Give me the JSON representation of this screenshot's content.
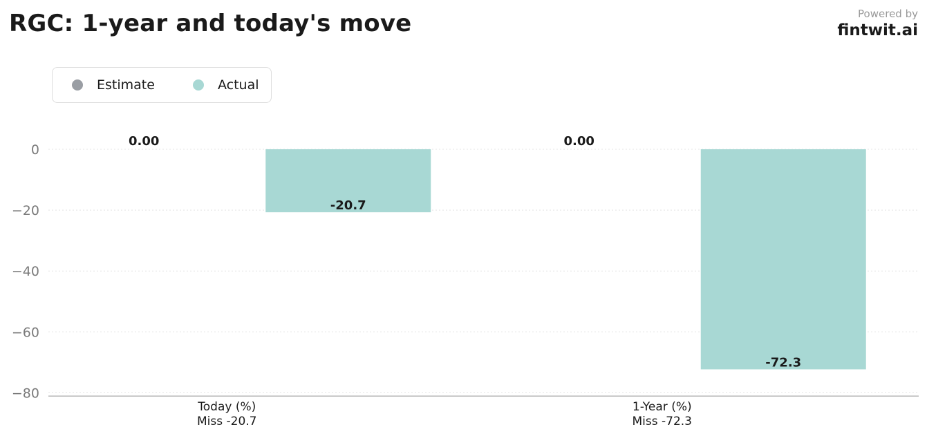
{
  "header": {
    "title": "RGC: 1-year and today's move",
    "powered_by": "Powered by",
    "brand": "fintwit.ai"
  },
  "legend": {
    "items": [
      {
        "label": "Estimate",
        "color": "#9a9ea4"
      },
      {
        "label": "Actual",
        "color": "#a8d8d4"
      }
    ]
  },
  "chart_data": {
    "type": "bar",
    "categories": [
      "Today (%)",
      "1-Year (%)"
    ],
    "category_sublabels": [
      "Miss -20.7",
      "Miss -72.3"
    ],
    "series": [
      {
        "name": "Estimate",
        "color": "#9a9ea4",
        "values": [
          0.0,
          0.0
        ],
        "labels": [
          "0.00",
          "0.00"
        ]
      },
      {
        "name": "Actual",
        "color": "#a8d8d4",
        "values": [
          -20.7,
          -72.3
        ],
        "labels": [
          "-20.7",
          "-72.3"
        ]
      }
    ],
    "yticks": [
      0,
      -20,
      -40,
      -60,
      -80
    ],
    "ytick_labels": [
      "0",
      "−20",
      "−40",
      "−60",
      "−80"
    ],
    "ylim": [
      -81,
      0
    ],
    "grid": true,
    "legend_position": "top-left"
  }
}
